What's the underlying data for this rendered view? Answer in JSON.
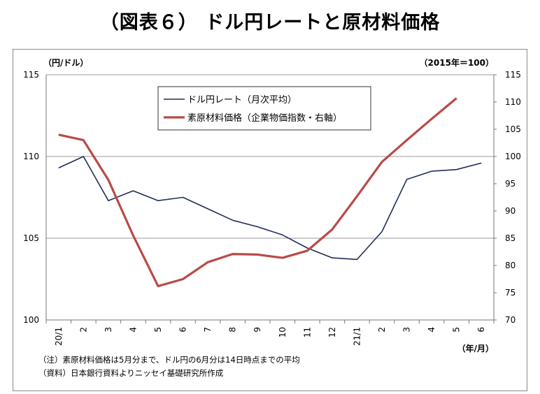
{
  "title": "（図表６） ドル円レートと原材料価格",
  "colors": {
    "navy": "#1f2d5a",
    "red": "#b94a48",
    "grid": "#9a9a9a"
  },
  "chart_data": {
    "type": "line",
    "left_unit": "（円/ドル）",
    "right_unit": "（2015年＝100）",
    "x_unit": "（年/月）",
    "categories": [
      "20/1",
      "2",
      "3",
      "4",
      "5",
      "6",
      "7",
      "8",
      "9",
      "10",
      "11",
      "12",
      "21/1",
      "2",
      "3",
      "4",
      "5",
      "6"
    ],
    "left_ylim": [
      100,
      115
    ],
    "left_ticks": [
      100,
      105,
      110,
      115
    ],
    "right_ylim": [
      70,
      115
    ],
    "right_ticks": [
      70,
      75,
      80,
      85,
      90,
      95,
      100,
      105,
      110,
      115
    ],
    "series": [
      {
        "name": "ドル円レート（月次平均）",
        "axis": "left",
        "values": [
          109.3,
          110.0,
          107.3,
          107.9,
          107.3,
          107.5,
          106.8,
          106.1,
          105.7,
          105.2,
          104.4,
          103.8,
          103.7,
          105.4,
          108.6,
          109.1,
          109.2,
          109.6
        ]
      },
      {
        "name": "素原材料価格（企業物価指数・右軸）",
        "axis": "right",
        "values": [
          104.0,
          103.0,
          95.7,
          85.5,
          76.2,
          77.5,
          80.6,
          82.1,
          82.0,
          81.4,
          82.7,
          86.6,
          92.7,
          99.0,
          103.0,
          106.9,
          110.7,
          null
        ]
      }
    ]
  },
  "notes": [
    "（注）素原材料価格は5月分まで、ドル円の6月分は14日時点までの平均",
    "（資料）日本銀行資料よりニッセイ基礎研究所作成"
  ]
}
